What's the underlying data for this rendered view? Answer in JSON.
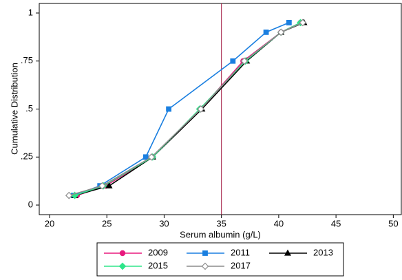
{
  "chart_data": {
    "type": "line",
    "x_label": "Serum albumin (g/L)",
    "y_label": "Cumulative Distribution",
    "xlim": [
      19.1,
      50.7
    ],
    "ylim": [
      -0.05,
      1.05
    ],
    "xticks": [
      20,
      25,
      30,
      35,
      40,
      45,
      50
    ],
    "yticks": [
      0,
      {
        "value": 0.25,
        "label": ".25"
      },
      {
        "value": 0.5,
        "label": ".5"
      },
      {
        "value": 0.75,
        "label": ".75"
      },
      1
    ],
    "grid": false,
    "legend_position": "bottom",
    "reference_line": {
      "x": 35,
      "color": "#a0153e"
    },
    "series": [
      {
        "name": "2009",
        "color": "#e8197d",
        "marker": "circle",
        "filled": true,
        "x": [
          22.4,
          24.9,
          29.0,
          33.2,
          36.9,
          40.2,
          41.9
        ],
        "values": [
          0.05,
          0.1,
          0.25,
          0.5,
          0.75,
          0.9,
          0.95
        ]
      },
      {
        "name": "2011",
        "color": "#1a7fe0",
        "marker": "square",
        "filled": true,
        "x": [
          22.1,
          24.4,
          28.4,
          30.4,
          36.0,
          38.9,
          40.9
        ],
        "values": [
          0.05,
          0.1,
          0.25,
          0.5,
          0.75,
          0.9,
          0.95
        ]
      },
      {
        "name": "2013",
        "color": "#000000",
        "marker": "triangle",
        "filled": true,
        "x": [
          22.2,
          25.2,
          29.0,
          33.3,
          37.2,
          40.2,
          42.2
        ],
        "values": [
          0.05,
          0.1,
          0.25,
          0.5,
          0.75,
          0.9,
          0.95
        ]
      },
      {
        "name": "2015",
        "color": "#2ee58a",
        "marker": "diamond",
        "filled": true,
        "x": [
          22.2,
          24.7,
          29.0,
          33.1,
          37.1,
          40.2,
          41.9
        ],
        "values": [
          0.05,
          0.1,
          0.25,
          0.5,
          0.75,
          0.9,
          0.95
        ]
      },
      {
        "name": "2017",
        "color": "#8c8c8c",
        "marker": "diamond",
        "filled": false,
        "x": [
          21.7,
          24.6,
          28.9,
          33.2,
          37.0,
          40.2,
          42.1
        ],
        "values": [
          0.05,
          0.1,
          0.25,
          0.5,
          0.75,
          0.9,
          0.95
        ]
      }
    ]
  }
}
